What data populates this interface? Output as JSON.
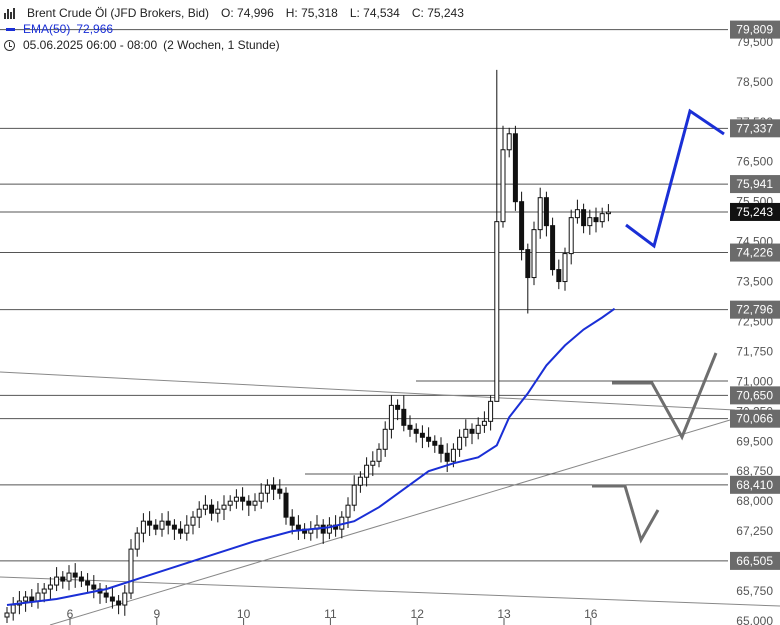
{
  "legend": {
    "symbol": "Brent Crude Öl (JFD Brokers, Bid)",
    "open": "O: 74,996",
    "high": "H: 75,318",
    "low": "L: 74,534",
    "close": "C: 75,243",
    "ema_label": "EMA(50)",
    "ema_value": "72,966",
    "period": "05.06.2025 06:00 - 08:00",
    "range": "(2 Wochen, 1 Stunde)"
  },
  "colors": {
    "ema": "#1a2fd6",
    "projection_blue": "#1a2fd6",
    "projection_gray": "#6e6e6e",
    "badge_gray": "#6b6b6b",
    "badge_black": "#111111",
    "candle": "#111111",
    "hline": "#555555"
  },
  "chart_data": {
    "type": "candlestick",
    "y_range": [
      65.0,
      80.5
    ],
    "x_labels": [
      {
        "label": "6",
        "index": 10
      },
      {
        "label": "9",
        "index": 24
      },
      {
        "label": "10",
        "index": 38
      },
      {
        "label": "11",
        "index": 52
      },
      {
        "label": "12",
        "index": 66
      },
      {
        "label": "13",
        "index": 80
      },
      {
        "label": "16",
        "index": 94
      }
    ],
    "y_ticks": [
      "79,500",
      "78,500",
      "77,500",
      "76,500",
      "75,500",
      "74,500",
      "73,500",
      "72,500",
      "71,750",
      "71,000",
      "70,250",
      "69,500",
      "68,750",
      "68,000",
      "67,250",
      "66,500",
      "65,750",
      "65,000"
    ],
    "y_tick_values": [
      79.5,
      78.5,
      77.5,
      76.5,
      75.5,
      74.5,
      73.5,
      72.5,
      71.75,
      71.0,
      70.25,
      69.5,
      68.75,
      68.0,
      67.25,
      66.5,
      65.75,
      65.0
    ],
    "price_levels": [
      {
        "value": 79.809,
        "label": "79,809",
        "style": "gray"
      },
      {
        "value": 77.337,
        "label": "77,337",
        "style": "gray"
      },
      {
        "value": 75.941,
        "label": "75,941",
        "style": "gray"
      },
      {
        "value": 75.243,
        "label": "75,243",
        "style": "black"
      },
      {
        "value": 74.226,
        "label": "74,226",
        "style": "gray"
      },
      {
        "value": 72.796,
        "label": "72,796",
        "style": "gray"
      },
      {
        "value": 70.65,
        "label": "70,650",
        "style": "gray"
      },
      {
        "value": 70.066,
        "label": "70,066",
        "style": "gray"
      },
      {
        "value": 68.41,
        "label": "68,410",
        "style": "gray"
      },
      {
        "value": 66.505,
        "label": "66,505",
        "style": "gray"
      }
    ],
    "ema_series": [
      {
        "i": 0,
        "v": 65.4
      },
      {
        "i": 8,
        "v": 65.55
      },
      {
        "i": 16,
        "v": 65.8
      },
      {
        "i": 22,
        "v": 66.1
      },
      {
        "i": 28,
        "v": 66.4
      },
      {
        "i": 34,
        "v": 66.7
      },
      {
        "i": 40,
        "v": 67.0
      },
      {
        "i": 46,
        "v": 67.25
      },
      {
        "i": 52,
        "v": 67.35
      },
      {
        "i": 56,
        "v": 67.5
      },
      {
        "i": 60,
        "v": 67.85
      },
      {
        "i": 64,
        "v": 68.3
      },
      {
        "i": 68,
        "v": 68.75
      },
      {
        "i": 72,
        "v": 68.95
      },
      {
        "i": 76,
        "v": 69.1
      },
      {
        "i": 79,
        "v": 69.4
      },
      {
        "i": 81,
        "v": 70.1
      },
      {
        "i": 84,
        "v": 70.7
      },
      {
        "i": 87,
        "v": 71.4
      },
      {
        "i": 90,
        "v": 71.9
      },
      {
        "i": 93,
        "v": 72.3
      },
      {
        "i": 96,
        "v": 72.6
      },
      {
        "i": 98,
        "v": 72.82
      }
    ],
    "candles": []
  }
}
